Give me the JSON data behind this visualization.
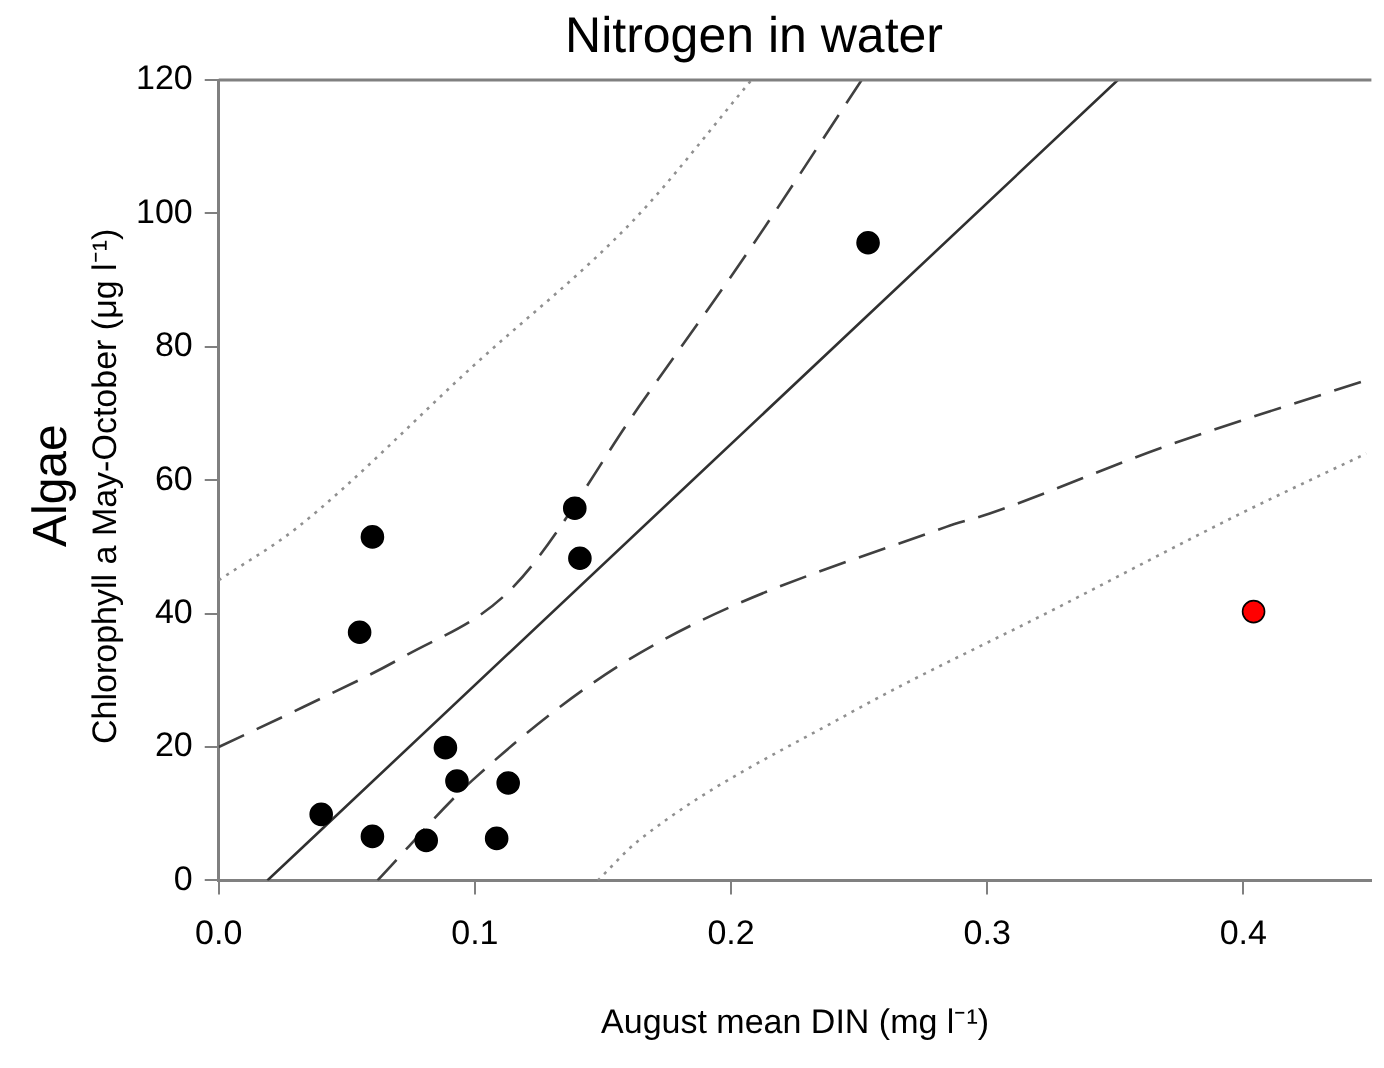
{
  "chart_data": {
    "type": "scatter",
    "title": "Nitrogen in water",
    "xlabel": "August mean DIN (mg l⁻¹)",
    "ylabel": "Algae\nChlorophyll a May-October (μg l⁻¹)",
    "xlim": [
      0,
      0.45
    ],
    "xticks": [
      {
        "value": 0,
        "label": "0.0"
      },
      {
        "value": 0.1,
        "label": "0.1"
      },
      {
        "value": 0.2,
        "label": "0.2"
      },
      {
        "value": 0.3,
        "label": "0.3"
      },
      {
        "value": 0.4,
        "label": "0.4"
      }
    ],
    "ylim": [
      0,
      120
    ],
    "yticks": [
      0,
      20,
      40,
      60,
      80,
      100,
      120
    ],
    "grid": false,
    "legend": false,
    "series": [
      {
        "type": "line",
        "marker": "none",
        "color": "#303030",
        "line_style": "solid",
        "x": [
          0.019,
          0.351
        ],
        "values": [
          0,
          120
        ]
      },
      {
        "type": "line",
        "marker": "none",
        "color": "#404040",
        "line_style": "dashed",
        "x": [
          0,
          0.033,
          0.072,
          0.115,
          0.164,
          0.208,
          0.251
        ],
        "values": [
          20,
          26,
          33.5,
          44,
          71,
          95,
          120
        ]
      },
      {
        "type": "line",
        "marker": "none",
        "color": "#404040",
        "line_style": "dashed",
        "x": [
          0.062,
          0.099,
          0.164,
          0.284,
          0.301,
          0.369,
          0.448
        ],
        "values": [
          0,
          15,
          34,
          53,
          55,
          65,
          75
        ]
      },
      {
        "type": "line",
        "marker": "none",
        "color": "#909090",
        "line_style": "dotted",
        "x": [
          0,
          0.031,
          0.099,
          0.162,
          0.208
        ],
        "values": [
          45,
          53,
          77,
          99,
          120
        ]
      },
      {
        "type": "line",
        "marker": "none",
        "color": "#909090",
        "line_style": "dotted",
        "x": [
          0.148,
          0.164,
          0.246,
          0.328,
          0.399,
          0.448
        ],
        "values": [
          0,
          6,
          25,
          41,
          55,
          64
        ]
      },
      {
        "marker": "circle",
        "x": [
          0.04,
          0.055,
          0.06,
          0.06,
          0.081,
          0.0885,
          0.093,
          0.1085,
          0.113,
          0.139,
          0.141,
          0.2535,
          0.404
        ],
        "values": [
          9.9,
          37.2,
          51.5,
          6.6,
          6.0,
          19.9,
          14.9,
          6.3,
          14.6,
          55.8,
          48.3,
          95.6,
          40.3
        ],
        "colors": [
          "#000000",
          "#000000",
          "#000000",
          "#000000",
          "#000000",
          "#000000",
          "#000000",
          "#000000",
          "#000000",
          "#000000",
          "#000000",
          "#000000",
          "#ff0000"
        ]
      }
    ]
  }
}
